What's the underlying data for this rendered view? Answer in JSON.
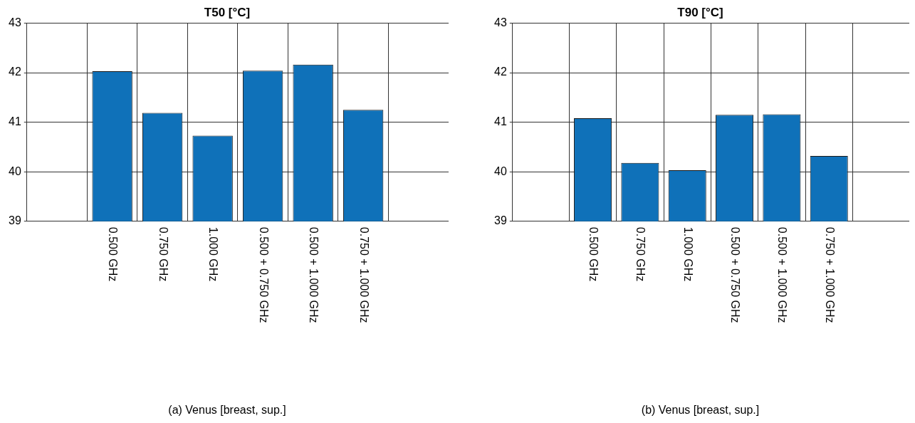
{
  "chart_data": [
    {
      "type": "bar",
      "title": "T50 [°C]",
      "xlabel": "(a) Venus [breast, sup.]",
      "categories": [
        "0.500 GHz",
        "0.750 GHz",
        "1.000 GHz",
        "0.500 + 0.750 GHz",
        "0.500 + 1.000 GHz",
        "0.750 + 1.000 GHz"
      ],
      "values": [
        42.03,
        41.19,
        40.73,
        42.04,
        42.16,
        41.25
      ],
      "color": "#0f71b9",
      "ylim": [
        39,
        43
      ],
      "yticks": [
        39,
        40,
        41,
        42,
        43
      ],
      "grid": true
    },
    {
      "type": "bar",
      "title": "T90 [°C]",
      "xlabel": "(b) Venus [breast, sup.]",
      "categories": [
        "0.500 GHz",
        "0.750 GHz",
        "1.000 GHz",
        "0.500 + 0.750 GHz",
        "0.500 + 1.000 GHz",
        "0.750 + 1.000 GHz"
      ],
      "values": [
        41.08,
        40.18,
        40.03,
        41.15,
        41.16,
        40.32
      ],
      "color": "#0f71b9",
      "ylim": [
        39,
        43
      ],
      "yticks": [
        39,
        40,
        41,
        42,
        43
      ],
      "grid": true
    }
  ]
}
